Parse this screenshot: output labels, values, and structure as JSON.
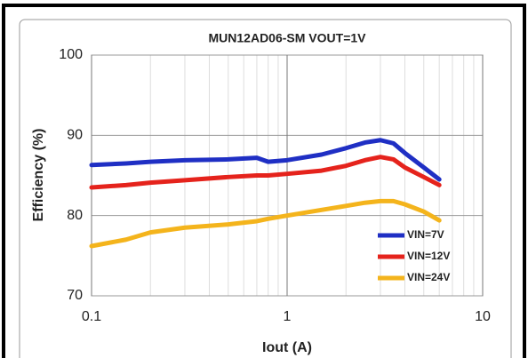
{
  "chart_data": {
    "type": "line",
    "title": "MUN12AD06-SM  VOUT=1V",
    "xlabel": "Iout (A)",
    "ylabel": "Efficiency (%)",
    "x": [
      0.1,
      0.15,
      0.2,
      0.3,
      0.5,
      0.7,
      0.8,
      1,
      1.5,
      2,
      2.5,
      3,
      3.5,
      4,
      5,
      6
    ],
    "series": [
      {
        "name": "VIN=7V",
        "color": "#1f2fc4",
        "values": [
          86.3,
          86.5,
          86.7,
          86.9,
          87.0,
          87.2,
          86.7,
          86.9,
          87.6,
          88.4,
          89.1,
          89.4,
          89.0,
          87.8,
          86.0,
          84.5
        ]
      },
      {
        "name": "VIN=12V",
        "color": "#e5231c",
        "values": [
          83.5,
          83.8,
          84.1,
          84.4,
          84.8,
          85.0,
          85.0,
          85.2,
          85.6,
          86.2,
          86.9,
          87.3,
          87.0,
          86.0,
          84.8,
          83.8
        ]
      },
      {
        "name": "VIN=24V",
        "color": "#f4b41c",
        "values": [
          76.2,
          77.0,
          77.9,
          78.5,
          78.9,
          79.3,
          79.6,
          80.0,
          80.7,
          81.2,
          81.6,
          81.8,
          81.8,
          81.4,
          80.5,
          79.4
        ]
      }
    ],
    "xscale": "log",
    "xlim": [
      0.1,
      10
    ],
    "xticks": [
      0.1,
      1,
      10
    ],
    "ylim": [
      70,
      100
    ],
    "yticks": [
      70,
      80,
      90,
      100
    ],
    "grid": true,
    "legend": "lower right"
  }
}
